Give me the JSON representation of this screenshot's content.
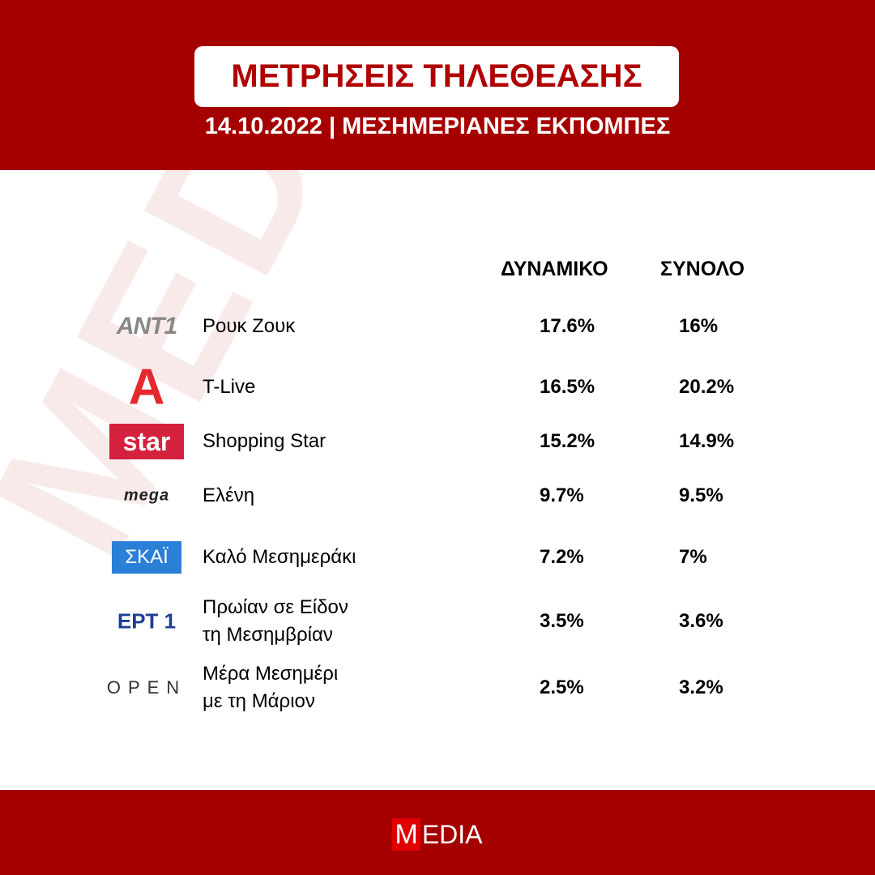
{
  "header": {
    "title": "ΜΕΤΡΗΣΕΙΣ ΤΗΛΕΘΕΑΣΗΣ",
    "subtitle": "14.10.2022 | ΜΕΣΗΜΕΡΙΑΝΕΣ ΕΚΠΟΜΠΕΣ"
  },
  "watermark": "MEDIA",
  "table": {
    "columns": [
      "ΔΥΝΑΜΙΚΟ",
      "ΣΥΝΟΛΟ"
    ],
    "rows": [
      {
        "channel": "ANT1",
        "show": "Ρουκ Ζουκ",
        "values": [
          "17.6%",
          "16%"
        ]
      },
      {
        "channel": "Α",
        "show": "T-Live",
        "values": [
          "16.5%",
          "20.2%"
        ]
      },
      {
        "channel": "star",
        "show": "Shopping Star",
        "values": [
          "15.2%",
          "14.9%"
        ]
      },
      {
        "channel": "mega",
        "show": "Ελένη",
        "values": [
          "9.7%",
          "9.5%"
        ]
      },
      {
        "channel": "ΣΚΑΪ",
        "show": "Καλό Μεσημεράκι",
        "values": [
          "7.2%",
          "7%"
        ]
      },
      {
        "channel": "ΕΡΤ 1",
        "show": "Πρωίαν σε Είδον\nτη Μεσημβρίαν",
        "values": [
          "3.5%",
          "3.6%"
        ]
      },
      {
        "channel": "OPEN",
        "show": "Μέρα Μεσημέρι\nμε τη Μάριον",
        "values": [
          "2.5%",
          "3.2%"
        ]
      }
    ]
  },
  "footer": {
    "logo_initial": "M",
    "logo_rest": "EDIA"
  }
}
